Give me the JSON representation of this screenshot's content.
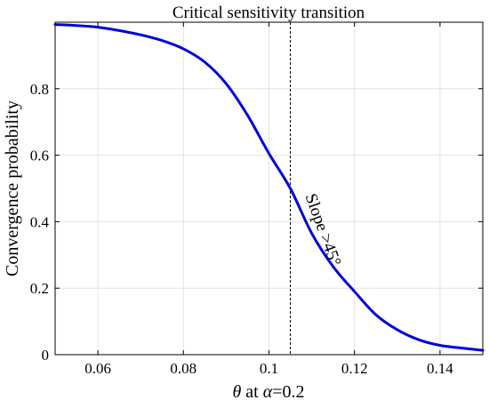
{
  "chart_data": {
    "type": "line",
    "title": "Critical sensitivity transition",
    "xlabel_parts": {
      "theta": "θ",
      "middle": " at ",
      "alpha": "α",
      "value": "=0.2"
    },
    "ylabel": "Convergence probability",
    "xlim": [
      0.05,
      0.15
    ],
    "ylim": [
      0,
      1
    ],
    "x_ticks": [
      0.06,
      0.08,
      0.1,
      0.12,
      0.14
    ],
    "x_tick_labels": [
      "0.06",
      "0.08",
      "0.1",
      "0.12",
      "0.14"
    ],
    "y_ticks": [
      0,
      0.2,
      0.4,
      0.6,
      0.8
    ],
    "y_tick_labels": [
      "0",
      "0.2",
      "0.4",
      "0.6",
      "0.8"
    ],
    "grid": true,
    "series": [
      {
        "color": "#0000dd",
        "x": [
          0.05,
          0.055,
          0.06,
          0.065,
          0.07,
          0.075,
          0.08,
          0.085,
          0.09,
          0.095,
          0.1,
          0.105,
          0.11,
          0.115,
          0.12,
          0.125,
          0.13,
          0.135,
          0.14,
          0.145,
          0.15
        ],
        "y": [
          0.993,
          0.99,
          0.985,
          0.975,
          0.962,
          0.945,
          0.92,
          0.88,
          0.815,
          0.72,
          0.605,
          0.5,
          0.365,
          0.265,
          0.19,
          0.12,
          0.075,
          0.045,
          0.028,
          0.02,
          0.013
        ]
      }
    ],
    "reference_line": {
      "x": 0.105,
      "style": "dashed",
      "color": "#000000"
    },
    "annotation": {
      "text": "Slope >45°",
      "x": 0.1115,
      "y": 0.37,
      "rotation_deg": 70
    }
  }
}
